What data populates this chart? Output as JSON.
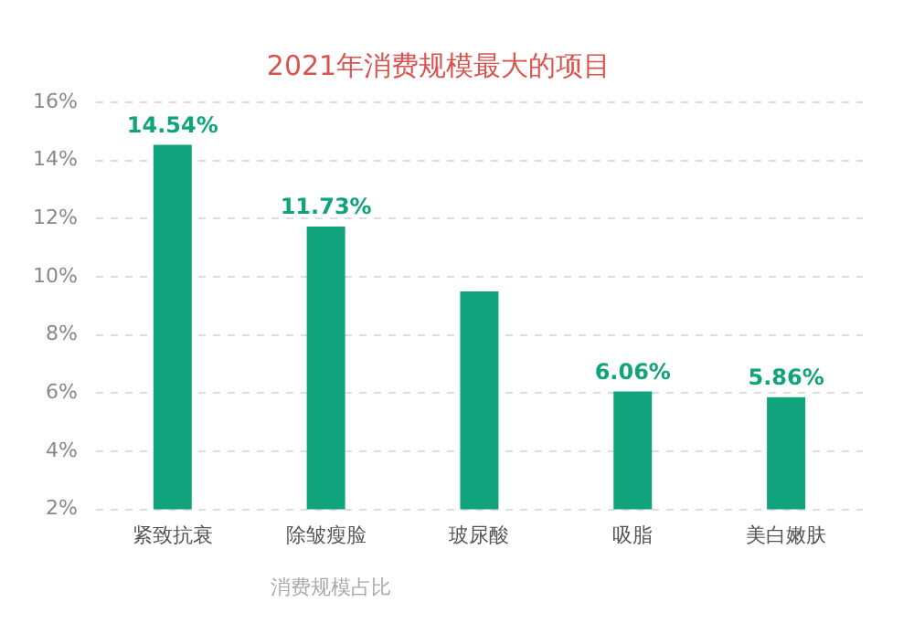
{
  "chart_data": {
    "type": "bar",
    "title": "2021年消费规模最大的项目",
    "categories": [
      "紧致抗衰",
      "除皱瘦脸",
      "玻尿酸",
      "吸脂",
      "美白嫩肤"
    ],
    "values": [
      14.54,
      11.73,
      9.5,
      6.06,
      5.86
    ],
    "value_labels": [
      "14.54%",
      "11.73%",
      null,
      "6.06%",
      "5.86%"
    ],
    "color": "#10a37c",
    "ylim": [
      2,
      16
    ],
    "yticks": [
      {
        "value": 2,
        "label": "2%"
      },
      {
        "value": 4,
        "label": "4%"
      },
      {
        "value": 6,
        "label": "6%"
      },
      {
        "value": 8,
        "label": "8%"
      },
      {
        "value": 10,
        "label": "10%"
      },
      {
        "value": 12,
        "label": "12%"
      },
      {
        "value": 14,
        "label": "14%"
      },
      {
        "value": 16,
        "label": "16%"
      }
    ],
    "grid": "y",
    "annotations": [
      "消费规模占比"
    ]
  }
}
